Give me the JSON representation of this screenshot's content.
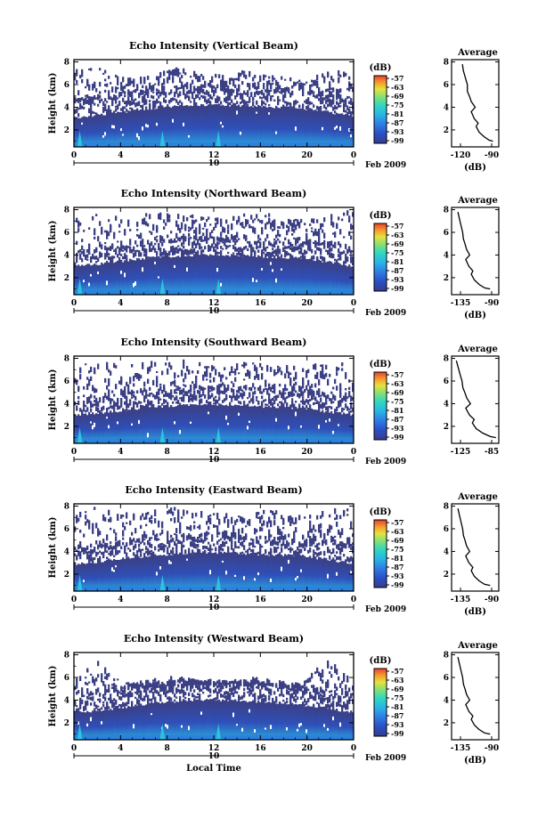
{
  "chart_data": [
    {
      "type": "heatmap",
      "title": "Echo Intensity (Vertical Beam)",
      "ylabel": "Height (km)",
      "date_label": "10",
      "month_year": "Feb 2009",
      "x_ticks": [
        "0",
        "4",
        "8",
        "12",
        "16",
        "20",
        "0"
      ],
      "y_ticks": [
        "2",
        "4",
        "6",
        "8"
      ],
      "xlim": [
        0,
        24
      ],
      "ylim": [
        0.5,
        8.2
      ],
      "colorbar": {
        "unit": "(dB)",
        "ticks": [
          "-57",
          "-63",
          "-69",
          "-75",
          "-81",
          "-87",
          "-93",
          "-99"
        ]
      },
      "top_km": [
        7.4,
        7.7,
        6.6,
        6.9,
        7.6,
        7.1,
        6.9,
        7.5,
        6.8,
        6.5,
        7.3,
        7.4
      ],
      "layer_km": [
        3.1,
        3.3,
        3.6,
        3.9,
        4.1,
        4.2,
        4.2,
        4.1,
        4.0,
        3.9,
        3.6,
        3.2
      ],
      "average_profile": {
        "title": "Average",
        "xlabel": "(dB)",
        "x_ticks": [
          "-120",
          "-90"
        ],
        "y_ticks": [
          "2",
          "4",
          "6",
          "8"
        ],
        "xlim": [
          -128,
          -80
        ],
        "ylim": [
          0.5,
          8.2
        ],
        "x": [
          -117,
          -116,
          -114,
          -112,
          -112,
          -110,
          -108,
          -104,
          -108,
          -105,
          -101,
          -103,
          -100,
          -95,
          -90,
          -86
        ],
        "y": [
          7.8,
          7.2,
          6.6,
          6.0,
          5.4,
          5.0,
          4.5,
          4.0,
          3.6,
          3.0,
          2.6,
          2.3,
          1.8,
          1.4,
          1.1,
          1.0
        ]
      }
    },
    {
      "type": "heatmap",
      "title": "Echo Intensity (Northward Beam)",
      "ylabel": "Height (km)",
      "date_label": "10",
      "month_year": "Feb 2009",
      "x_ticks": [
        "0",
        "4",
        "8",
        "12",
        "16",
        "20",
        "0"
      ],
      "y_ticks": [
        "2",
        "4",
        "6",
        "8"
      ],
      "xlim": [
        0,
        24
      ],
      "ylim": [
        0.5,
        8.2
      ],
      "colorbar": {
        "unit": "(dB)",
        "ticks": [
          "-57",
          "-63",
          "-69",
          "-75",
          "-81",
          "-87",
          "-93",
          "-99"
        ]
      },
      "top_km": [
        7.9,
        8.0,
        7.4,
        7.8,
        8.0,
        7.6,
        7.3,
        7.9,
        7.6,
        7.2,
        7.8,
        8.0
      ],
      "layer_km": [
        3.0,
        3.2,
        3.5,
        3.8,
        3.9,
        4.0,
        4.0,
        3.9,
        3.8,
        3.7,
        3.4,
        3.0
      ],
      "average_profile": {
        "title": "Average",
        "xlabel": "(dB)",
        "x_ticks": [
          "-135",
          "-90"
        ],
        "y_ticks": [
          "2",
          "4",
          "6",
          "8"
        ],
        "xlim": [
          -145,
          -85
        ],
        "ylim": [
          0.5,
          8.2
        ],
        "x": [
          -137,
          -135,
          -133,
          -131,
          -130,
          -128,
          -126,
          -122,
          -127,
          -123,
          -118,
          -120,
          -116,
          -110,
          -103,
          -96
        ],
        "y": [
          7.8,
          7.2,
          6.6,
          6.0,
          5.4,
          5.0,
          4.5,
          4.0,
          3.6,
          3.0,
          2.6,
          2.3,
          1.8,
          1.4,
          1.1,
          1.0
        ]
      }
    },
    {
      "type": "heatmap",
      "title": "Echo Intensity (Southward Beam)",
      "ylabel": "Height (km)",
      "date_label": "10",
      "month_year": "Feb 2009",
      "x_ticks": [
        "0",
        "4",
        "8",
        "12",
        "16",
        "20",
        "0"
      ],
      "y_ticks": [
        "2",
        "4",
        "6",
        "8"
      ],
      "xlim": [
        0,
        24
      ],
      "ylim": [
        0.5,
        8.2
      ],
      "colorbar": {
        "unit": "(dB)",
        "ticks": [
          "-57",
          "-63",
          "-69",
          "-75",
          "-81",
          "-87",
          "-93",
          "-99"
        ]
      },
      "top_km": [
        7.9,
        8.0,
        7.5,
        7.8,
        8.0,
        7.7,
        7.4,
        7.9,
        7.6,
        7.3,
        7.9,
        8.0
      ],
      "layer_km": [
        3.0,
        3.2,
        3.4,
        3.7,
        3.8,
        3.9,
        3.9,
        3.8,
        3.7,
        3.6,
        3.3,
        3.0
      ],
      "average_profile": {
        "title": "Average",
        "xlabel": "",
        "x_ticks": [
          "-125",
          "-85"
        ],
        "y_ticks": [
          "2",
          "4",
          "6",
          "8"
        ],
        "xlim": [
          -133,
          -83
        ],
        "ylim": [
          0.5,
          8.2
        ],
        "x": [
          -128,
          -126,
          -124,
          -122,
          -121,
          -119,
          -117,
          -113,
          -118,
          -114,
          -109,
          -111,
          -107,
          -100,
          -92,
          -86
        ],
        "y": [
          7.8,
          7.2,
          6.6,
          6.0,
          5.4,
          5.0,
          4.5,
          4.0,
          3.6,
          3.0,
          2.6,
          2.3,
          1.8,
          1.4,
          1.1,
          1.0
        ]
      }
    },
    {
      "type": "heatmap",
      "title": "Echo Intensity (Eastward Beam)",
      "ylabel": "Height (km)",
      "date_label": "10",
      "month_year": "Feb 2009",
      "x_ticks": [
        "0",
        "4",
        "8",
        "12",
        "16",
        "20",
        "0"
      ],
      "y_ticks": [
        "2",
        "4",
        "6",
        "8"
      ],
      "xlim": [
        0,
        24
      ],
      "ylim": [
        0.5,
        8.2
      ],
      "colorbar": {
        "unit": "(dB)",
        "ticks": [
          "-57",
          "-63",
          "-69",
          "-75",
          "-81",
          "-87",
          "-93",
          "-99"
        ]
      },
      "top_km": [
        7.9,
        8.0,
        7.6,
        7.8,
        8.0,
        7.7,
        7.5,
        7.9,
        7.7,
        7.4,
        7.8,
        8.0
      ],
      "layer_km": [
        2.9,
        3.1,
        3.4,
        3.6,
        3.8,
        3.9,
        3.9,
        3.8,
        3.7,
        3.6,
        3.3,
        2.9
      ],
      "average_profile": {
        "title": "Average",
        "xlabel": "(dB)",
        "x_ticks": [
          "-135",
          "-90"
        ],
        "y_ticks": [
          "2",
          "4",
          "6",
          "8"
        ],
        "xlim": [
          -145,
          -85
        ],
        "ylim": [
          0.5,
          8.2
        ],
        "x": [
          -137,
          -135,
          -133,
          -131,
          -130,
          -128,
          -126,
          -122,
          -127,
          -123,
          -118,
          -120,
          -116,
          -110,
          -103,
          -96
        ],
        "y": [
          7.8,
          7.2,
          6.6,
          6.0,
          5.4,
          5.0,
          4.5,
          4.0,
          3.6,
          3.0,
          2.6,
          2.3,
          1.8,
          1.4,
          1.1,
          1.0
        ]
      }
    },
    {
      "type": "heatmap",
      "title": "Echo Intensity (Westward Beam)",
      "ylabel": "Height (km)",
      "xlabel": "Local Time",
      "date_label": "10",
      "month_year": "Feb 2009",
      "x_ticks": [
        "0",
        "4",
        "8",
        "12",
        "16",
        "20",
        "0"
      ],
      "y_ticks": [
        "2",
        "4",
        "6",
        "8"
      ],
      "xlim": [
        0,
        24
      ],
      "ylim": [
        0.5,
        8.2
      ],
      "colorbar": {
        "unit": "(dB)",
        "ticks": [
          "-57",
          "-63",
          "-69",
          "-75",
          "-81",
          "-87",
          "-93",
          "-99"
        ]
      },
      "top_km": [
        6.0,
        7.9,
        5.6,
        5.9,
        6.2,
        5.8,
        5.6,
        6.1,
        5.8,
        5.5,
        7.9,
        6.0
      ],
      "layer_km": [
        2.9,
        3.1,
        3.4,
        3.7,
        3.9,
        4.0,
        4.0,
        3.9,
        3.8,
        3.6,
        3.3,
        2.9
      ],
      "average_profile": {
        "title": "Average",
        "xlabel": "(dB)",
        "x_ticks": [
          "-135",
          "-90"
        ],
        "y_ticks": [
          "2",
          "4",
          "6",
          "8"
        ],
        "xlim": [
          -145,
          -85
        ],
        "ylim": [
          0.5,
          8.2
        ],
        "x": [
          -137,
          -135,
          -133,
          -131,
          -130,
          -128,
          -126,
          -122,
          -127,
          -123,
          -118,
          -120,
          -116,
          -110,
          -103,
          -96
        ],
        "y": [
          7.8,
          7.2,
          6.6,
          6.0,
          5.4,
          5.0,
          4.5,
          4.0,
          3.6,
          3.0,
          2.6,
          2.3,
          1.8,
          1.4,
          1.1,
          1.0
        ]
      }
    }
  ],
  "colors": {
    "background_echo": "#3b3f84",
    "colormap": [
      "#363b8e",
      "#2a4fc4",
      "#2f7be4",
      "#27b5e6",
      "#30d6c2",
      "#7fe07a",
      "#e6e23a",
      "#f59a2c",
      "#e8402c"
    ]
  }
}
